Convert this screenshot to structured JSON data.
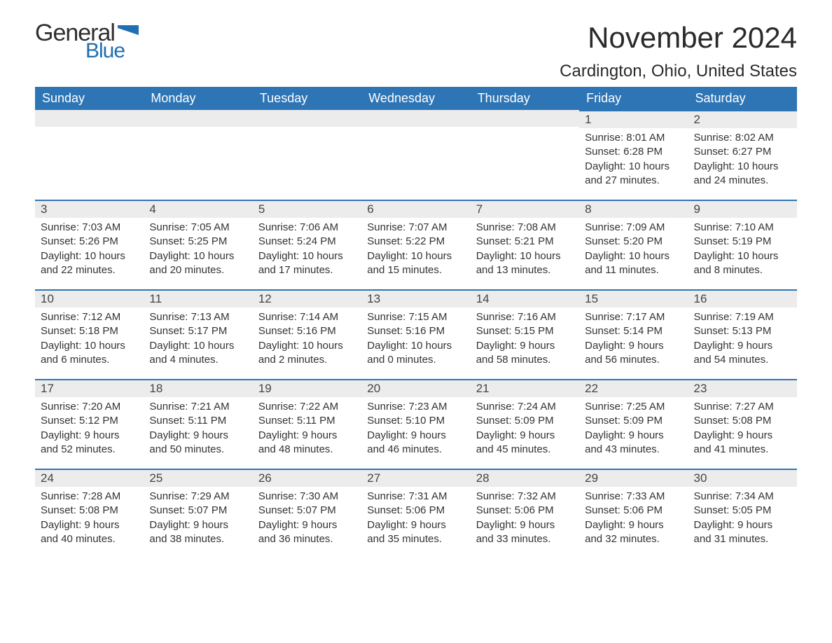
{
  "logo": {
    "word1": "General",
    "word2": "Blue",
    "flag_color": "#1f6fb2"
  },
  "title": "November 2024",
  "location": "Cardington, Ohio, United States",
  "colors": {
    "header_bg": "#2e75b6",
    "header_text": "#ffffff",
    "daynum_bg": "#ececec",
    "day_border": "#2e75b6",
    "body_text": "#333333",
    "page_bg": "#ffffff"
  },
  "weekdays": [
    "Sunday",
    "Monday",
    "Tuesday",
    "Wednesday",
    "Thursday",
    "Friday",
    "Saturday"
  ],
  "weeks": [
    [
      null,
      null,
      null,
      null,
      null,
      {
        "n": "1",
        "sr": "Sunrise: 8:01 AM",
        "ss": "Sunset: 6:28 PM",
        "dl1": "Daylight: 10 hours",
        "dl2": "and 27 minutes."
      },
      {
        "n": "2",
        "sr": "Sunrise: 8:02 AM",
        "ss": "Sunset: 6:27 PM",
        "dl1": "Daylight: 10 hours",
        "dl2": "and 24 minutes."
      }
    ],
    [
      {
        "n": "3",
        "sr": "Sunrise: 7:03 AM",
        "ss": "Sunset: 5:26 PM",
        "dl1": "Daylight: 10 hours",
        "dl2": "and 22 minutes."
      },
      {
        "n": "4",
        "sr": "Sunrise: 7:05 AM",
        "ss": "Sunset: 5:25 PM",
        "dl1": "Daylight: 10 hours",
        "dl2": "and 20 minutes."
      },
      {
        "n": "5",
        "sr": "Sunrise: 7:06 AM",
        "ss": "Sunset: 5:24 PM",
        "dl1": "Daylight: 10 hours",
        "dl2": "and 17 minutes."
      },
      {
        "n": "6",
        "sr": "Sunrise: 7:07 AM",
        "ss": "Sunset: 5:22 PM",
        "dl1": "Daylight: 10 hours",
        "dl2": "and 15 minutes."
      },
      {
        "n": "7",
        "sr": "Sunrise: 7:08 AM",
        "ss": "Sunset: 5:21 PM",
        "dl1": "Daylight: 10 hours",
        "dl2": "and 13 minutes."
      },
      {
        "n": "8",
        "sr": "Sunrise: 7:09 AM",
        "ss": "Sunset: 5:20 PM",
        "dl1": "Daylight: 10 hours",
        "dl2": "and 11 minutes."
      },
      {
        "n": "9",
        "sr": "Sunrise: 7:10 AM",
        "ss": "Sunset: 5:19 PM",
        "dl1": "Daylight: 10 hours",
        "dl2": "and 8 minutes."
      }
    ],
    [
      {
        "n": "10",
        "sr": "Sunrise: 7:12 AM",
        "ss": "Sunset: 5:18 PM",
        "dl1": "Daylight: 10 hours",
        "dl2": "and 6 minutes."
      },
      {
        "n": "11",
        "sr": "Sunrise: 7:13 AM",
        "ss": "Sunset: 5:17 PM",
        "dl1": "Daylight: 10 hours",
        "dl2": "and 4 minutes."
      },
      {
        "n": "12",
        "sr": "Sunrise: 7:14 AM",
        "ss": "Sunset: 5:16 PM",
        "dl1": "Daylight: 10 hours",
        "dl2": "and 2 minutes."
      },
      {
        "n": "13",
        "sr": "Sunrise: 7:15 AM",
        "ss": "Sunset: 5:16 PM",
        "dl1": "Daylight: 10 hours",
        "dl2": "and 0 minutes."
      },
      {
        "n": "14",
        "sr": "Sunrise: 7:16 AM",
        "ss": "Sunset: 5:15 PM",
        "dl1": "Daylight: 9 hours",
        "dl2": "and 58 minutes."
      },
      {
        "n": "15",
        "sr": "Sunrise: 7:17 AM",
        "ss": "Sunset: 5:14 PM",
        "dl1": "Daylight: 9 hours",
        "dl2": "and 56 minutes."
      },
      {
        "n": "16",
        "sr": "Sunrise: 7:19 AM",
        "ss": "Sunset: 5:13 PM",
        "dl1": "Daylight: 9 hours",
        "dl2": "and 54 minutes."
      }
    ],
    [
      {
        "n": "17",
        "sr": "Sunrise: 7:20 AM",
        "ss": "Sunset: 5:12 PM",
        "dl1": "Daylight: 9 hours",
        "dl2": "and 52 minutes."
      },
      {
        "n": "18",
        "sr": "Sunrise: 7:21 AM",
        "ss": "Sunset: 5:11 PM",
        "dl1": "Daylight: 9 hours",
        "dl2": "and 50 minutes."
      },
      {
        "n": "19",
        "sr": "Sunrise: 7:22 AM",
        "ss": "Sunset: 5:11 PM",
        "dl1": "Daylight: 9 hours",
        "dl2": "and 48 minutes."
      },
      {
        "n": "20",
        "sr": "Sunrise: 7:23 AM",
        "ss": "Sunset: 5:10 PM",
        "dl1": "Daylight: 9 hours",
        "dl2": "and 46 minutes."
      },
      {
        "n": "21",
        "sr": "Sunrise: 7:24 AM",
        "ss": "Sunset: 5:09 PM",
        "dl1": "Daylight: 9 hours",
        "dl2": "and 45 minutes."
      },
      {
        "n": "22",
        "sr": "Sunrise: 7:25 AM",
        "ss": "Sunset: 5:09 PM",
        "dl1": "Daylight: 9 hours",
        "dl2": "and 43 minutes."
      },
      {
        "n": "23",
        "sr": "Sunrise: 7:27 AM",
        "ss": "Sunset: 5:08 PM",
        "dl1": "Daylight: 9 hours",
        "dl2": "and 41 minutes."
      }
    ],
    [
      {
        "n": "24",
        "sr": "Sunrise: 7:28 AM",
        "ss": "Sunset: 5:08 PM",
        "dl1": "Daylight: 9 hours",
        "dl2": "and 40 minutes."
      },
      {
        "n": "25",
        "sr": "Sunrise: 7:29 AM",
        "ss": "Sunset: 5:07 PM",
        "dl1": "Daylight: 9 hours",
        "dl2": "and 38 minutes."
      },
      {
        "n": "26",
        "sr": "Sunrise: 7:30 AM",
        "ss": "Sunset: 5:07 PM",
        "dl1": "Daylight: 9 hours",
        "dl2": "and 36 minutes."
      },
      {
        "n": "27",
        "sr": "Sunrise: 7:31 AM",
        "ss": "Sunset: 5:06 PM",
        "dl1": "Daylight: 9 hours",
        "dl2": "and 35 minutes."
      },
      {
        "n": "28",
        "sr": "Sunrise: 7:32 AM",
        "ss": "Sunset: 5:06 PM",
        "dl1": "Daylight: 9 hours",
        "dl2": "and 33 minutes."
      },
      {
        "n": "29",
        "sr": "Sunrise: 7:33 AM",
        "ss": "Sunset: 5:06 PM",
        "dl1": "Daylight: 9 hours",
        "dl2": "and 32 minutes."
      },
      {
        "n": "30",
        "sr": "Sunrise: 7:34 AM",
        "ss": "Sunset: 5:05 PM",
        "dl1": "Daylight: 9 hours",
        "dl2": "and 31 minutes."
      }
    ]
  ]
}
